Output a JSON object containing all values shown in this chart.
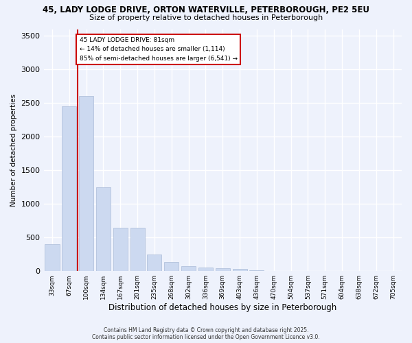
{
  "title_line1": "45, LADY LODGE DRIVE, ORTON WATERVILLE, PETERBOROUGH, PE2 5EU",
  "title_line2": "Size of property relative to detached houses in Peterborough",
  "xlabel": "Distribution of detached houses by size in Peterborough",
  "ylabel": "Number of detached properties",
  "bins": [
    "33sqm",
    "67sqm",
    "100sqm",
    "134sqm",
    "167sqm",
    "201sqm",
    "235sqm",
    "268sqm",
    "302sqm",
    "336sqm",
    "369sqm",
    "403sqm",
    "436sqm",
    "470sqm",
    "504sqm",
    "537sqm",
    "571sqm",
    "604sqm",
    "638sqm",
    "672sqm",
    "705sqm"
  ],
  "values": [
    400,
    2450,
    2600,
    1250,
    650,
    650,
    250,
    130,
    70,
    55,
    45,
    30,
    10,
    5,
    3,
    2,
    1,
    1,
    0,
    0,
    0
  ],
  "bar_color": "#ccd9f0",
  "bar_edge_color": "#aabbd8",
  "annotation_title": "45 LADY LODGE DRIVE: 81sqm",
  "annotation_line1": "← 14% of detached houses are smaller (1,114)",
  "annotation_line2": "85% of semi-detached houses are larger (6,541) →",
  "annotation_box_color": "#ffffff",
  "annotation_box_edge": "#cc0000",
  "property_line_color": "#cc0000",
  "ylim": [
    0,
    3600
  ],
  "yticks": [
    0,
    500,
    1000,
    1500,
    2000,
    2500,
    3000,
    3500
  ],
  "footer_line1": "Contains HM Land Registry data © Crown copyright and database right 2025.",
  "footer_line2": "Contains public sector information licensed under the Open Government Licence v3.0.",
  "bg_color": "#eef2fc",
  "grid_color": "#ffffff"
}
